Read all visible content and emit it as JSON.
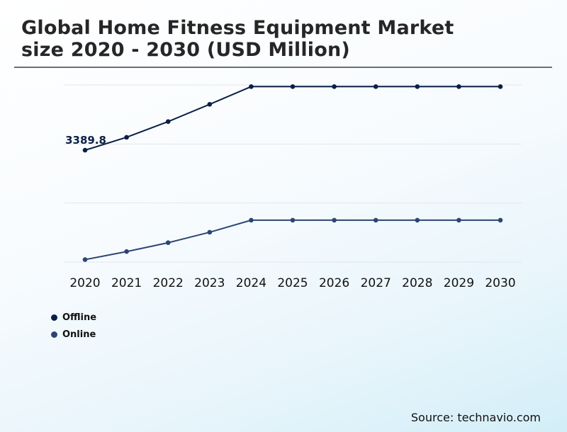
{
  "header": {
    "title": "Global Home Fitness Equipment Market\nsize 2020 - 2030 (USD Million)"
  },
  "source": "Source: technavio.com",
  "chart_data": {
    "type": "line",
    "x": [
      "2020",
      "2021",
      "2022",
      "2023",
      "2024",
      "2025",
      "2026",
      "2027",
      "2028",
      "2029",
      "2030"
    ],
    "series": [
      {
        "name": "Offline",
        "color": "#0b1f45",
        "values": [
          3389.8,
          3550,
          3745,
          3960,
          4180,
          4180,
          4180,
          4180,
          4180,
          4180,
          4180
        ]
      },
      {
        "name": "Online",
        "color": "#2d4573",
        "values": [
          2030,
          2130,
          2240,
          2370,
          2520,
          2520,
          2520,
          2520,
          2520,
          2520,
          2520
        ]
      }
    ],
    "annotations": [
      {
        "series": 0,
        "index": 0,
        "text": "3389.8"
      }
    ],
    "ylim": [
      2000,
      4200
    ],
    "grid": true,
    "legend": "bottom-left",
    "y_ticks_labeled": false
  }
}
